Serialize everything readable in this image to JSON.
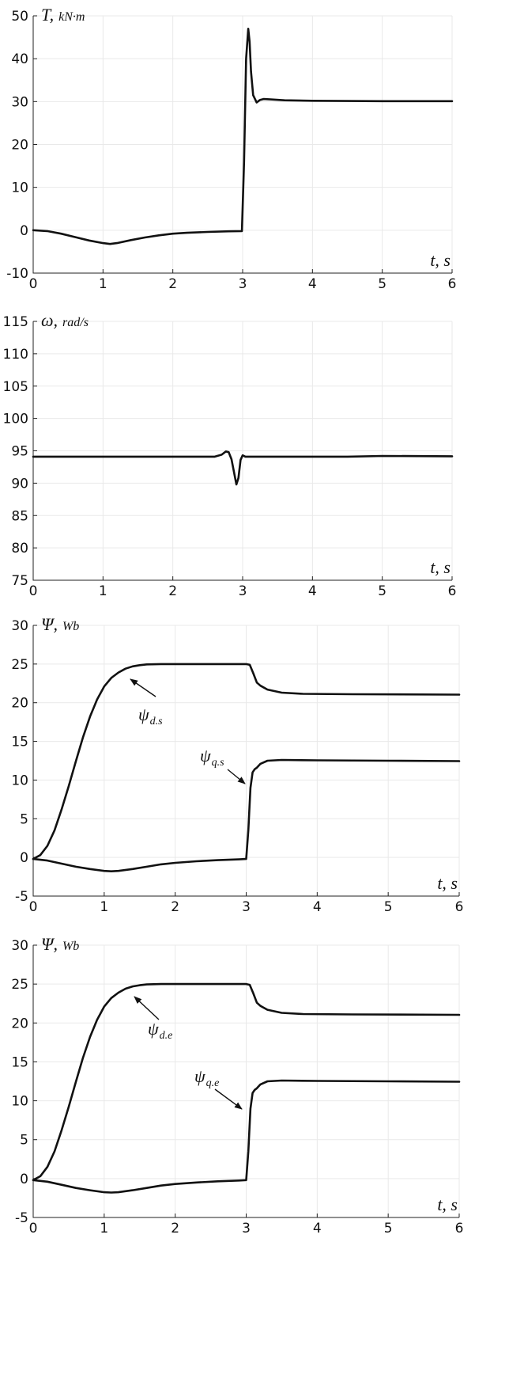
{
  "chart_data": [
    {
      "type": "line",
      "ylabel": "T,",
      "yunit": "kN·m",
      "xlabel": "t, s",
      "xlim": [
        0,
        6
      ],
      "ylim": [
        -10,
        50
      ],
      "xticks": [
        0,
        1,
        2,
        3,
        4,
        5,
        6
      ],
      "yticks": [
        -10,
        0,
        10,
        20,
        30,
        40,
        50
      ],
      "grid": true,
      "series": [
        {
          "x": [
            0,
            0.2,
            0.4,
            0.6,
            0.8,
            1.0,
            1.1,
            1.2,
            1.4,
            1.6,
            1.8,
            2.0,
            2.2,
            2.5,
            2.8,
            2.99,
            3.02,
            3.05,
            3.08,
            3.1,
            3.12,
            3.15,
            3.2,
            3.25,
            3.3,
            3.4,
            3.6,
            4.0,
            5.0,
            6.0
          ],
          "y": [
            0,
            -0.2,
            -0.8,
            -1.6,
            -2.4,
            -3.0,
            -3.2,
            -3.0,
            -2.3,
            -1.7,
            -1.2,
            -0.8,
            -0.6,
            -0.4,
            -0.25,
            -0.2,
            16,
            40,
            47,
            44,
            37,
            31.5,
            29.8,
            30.4,
            30.6,
            30.5,
            30.3,
            30.2,
            30.1,
            30.1
          ]
        }
      ]
    },
    {
      "type": "line",
      "ylabel": "ω,",
      "yunit": "rad/s",
      "xlabel": "t, s",
      "xlim": [
        0,
        6
      ],
      "ylim": [
        75,
        115
      ],
      "xticks": [
        0,
        1,
        2,
        3,
        4,
        5,
        6
      ],
      "yticks": [
        75,
        80,
        85,
        90,
        95,
        100,
        105,
        110,
        115
      ],
      "grid": true,
      "series": [
        {
          "x": [
            0,
            1,
            2,
            2.6,
            2.7,
            2.76,
            2.8,
            2.84,
            2.88,
            2.91,
            2.94,
            2.97,
            3.0,
            3.04,
            3.1,
            3.5,
            4.5,
            5.0,
            6.0
          ],
          "y": [
            94.1,
            94.1,
            94.1,
            94.1,
            94.4,
            94.9,
            94.8,
            93.7,
            91.5,
            89.8,
            90.8,
            93.6,
            94.3,
            94.1,
            94.1,
            94.1,
            94.1,
            94.2,
            94.15
          ]
        }
      ]
    },
    {
      "type": "line",
      "ylabel": "Ψ,",
      "yunit": "Wb",
      "xlabel": "t, s",
      "xlim": [
        0,
        6
      ],
      "ylim": [
        -5,
        30
      ],
      "xticks": [
        0,
        1,
        2,
        3,
        4,
        5,
        6
      ],
      "yticks": [
        -5,
        0,
        5,
        10,
        15,
        20,
        25,
        30
      ],
      "grid": true,
      "series": [
        {
          "name": "ψ",
          "name_sub": "d.s",
          "x": [
            0,
            0.1,
            0.2,
            0.3,
            0.4,
            0.5,
            0.6,
            0.7,
            0.8,
            0.9,
            1.0,
            1.1,
            1.2,
            1.3,
            1.4,
            1.5,
            1.6,
            1.8,
            2.0,
            2.5,
            2.9,
            3.0,
            3.05,
            3.1,
            3.15,
            3.2,
            3.3,
            3.5,
            3.8,
            4.5,
            6.0
          ],
          "y": [
            -0.2,
            0.3,
            1.5,
            3.5,
            6.2,
            9.2,
            12.4,
            15.5,
            18.2,
            20.4,
            22.1,
            23.2,
            23.9,
            24.4,
            24.7,
            24.85,
            24.95,
            25.0,
            25.0,
            25.0,
            25.0,
            25.0,
            24.9,
            23.8,
            22.6,
            22.2,
            21.7,
            21.3,
            21.15,
            21.1,
            21.05
          ]
        },
        {
          "name": "ψ",
          "name_sub": "q.s",
          "x": [
            0,
            0.2,
            0.4,
            0.6,
            0.8,
            1.0,
            1.1,
            1.2,
            1.4,
            1.6,
            1.8,
            2.0,
            2.3,
            2.6,
            2.9,
            3.0,
            3.03,
            3.06,
            3.09,
            3.12,
            3.15,
            3.2,
            3.3,
            3.5,
            4.0,
            5.0,
            6.0
          ],
          "y": [
            -0.2,
            -0.4,
            -0.8,
            -1.2,
            -1.5,
            -1.75,
            -1.8,
            -1.75,
            -1.5,
            -1.2,
            -0.9,
            -0.7,
            -0.5,
            -0.35,
            -0.25,
            -0.2,
            3.5,
            9.0,
            11.0,
            11.4,
            11.6,
            12.1,
            12.5,
            12.6,
            12.55,
            12.5,
            12.45
          ]
        }
      ]
    },
    {
      "type": "line",
      "ylabel": "Ψ,",
      "yunit": "Wb",
      "xlabel": "t, s",
      "xlim": [
        0,
        6
      ],
      "ylim": [
        -5,
        30
      ],
      "xticks": [
        0,
        1,
        2,
        3,
        4,
        5,
        6
      ],
      "yticks": [
        -5,
        0,
        5,
        10,
        15,
        20,
        25,
        30
      ],
      "grid": true,
      "series": [
        {
          "name": "ψ",
          "name_sub": "d.e",
          "x": [
            0,
            0.1,
            0.2,
            0.3,
            0.4,
            0.5,
            0.6,
            0.7,
            0.8,
            0.9,
            1.0,
            1.1,
            1.2,
            1.3,
            1.4,
            1.5,
            1.6,
            1.8,
            2.0,
            2.5,
            2.9,
            3.0,
            3.05,
            3.1,
            3.15,
            3.2,
            3.3,
            3.5,
            3.8,
            4.5,
            6.0
          ],
          "y": [
            -0.2,
            0.3,
            1.5,
            3.5,
            6.2,
            9.2,
            12.4,
            15.5,
            18.2,
            20.4,
            22.1,
            23.2,
            23.9,
            24.4,
            24.7,
            24.85,
            24.95,
            25.0,
            25.0,
            25.0,
            25.0,
            25.0,
            24.9,
            23.8,
            22.6,
            22.2,
            21.7,
            21.3,
            21.15,
            21.1,
            21.05
          ]
        },
        {
          "name": "ψ",
          "name_sub": "q.e",
          "x": [
            0,
            0.2,
            0.4,
            0.6,
            0.8,
            1.0,
            1.1,
            1.2,
            1.4,
            1.6,
            1.8,
            2.0,
            2.3,
            2.6,
            2.9,
            3.0,
            3.03,
            3.06,
            3.09,
            3.12,
            3.15,
            3.2,
            3.3,
            3.5,
            4.0,
            5.0,
            6.0
          ],
          "y": [
            -0.2,
            -0.4,
            -0.8,
            -1.2,
            -1.5,
            -1.75,
            -1.8,
            -1.75,
            -1.5,
            -1.2,
            -0.9,
            -0.7,
            -0.5,
            -0.35,
            -0.25,
            -0.2,
            3.5,
            9.0,
            11.0,
            11.4,
            11.6,
            12.1,
            12.5,
            12.6,
            12.55,
            12.5,
            12.45
          ]
        }
      ]
    }
  ]
}
